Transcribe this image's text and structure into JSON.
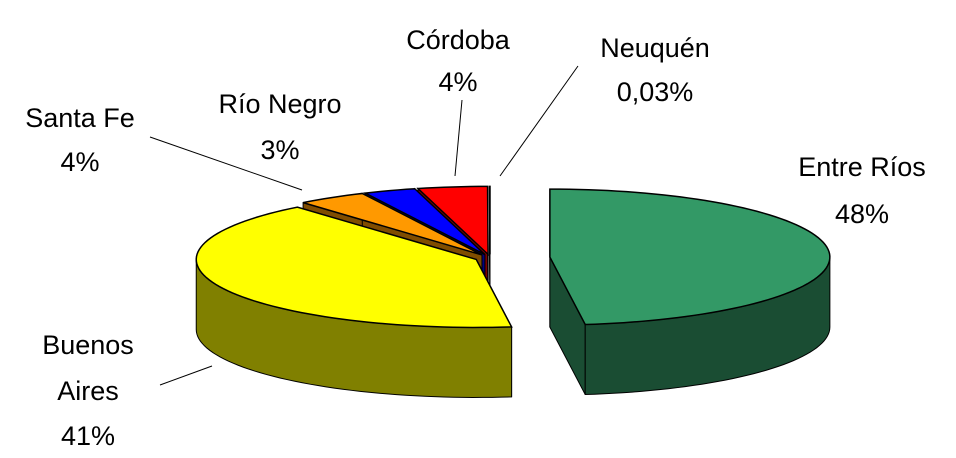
{
  "chart_data": {
    "type": "pie",
    "categories": [
      "Entre Ríos",
      "Buenos Aires",
      "Santa Fe",
      "Río Negro",
      "Córdoba",
      "Neuquén"
    ],
    "values": [
      48,
      41,
      4,
      3,
      4,
      0.03
    ],
    "value_labels": [
      "48%",
      "41%",
      "4%",
      "3%",
      "4%",
      "0,03%"
    ],
    "colors": [
      "#339966",
      "#ffff00",
      "#ff9900",
      "#0000ff",
      "#ff0000",
      "#ffffff"
    ]
  }
}
